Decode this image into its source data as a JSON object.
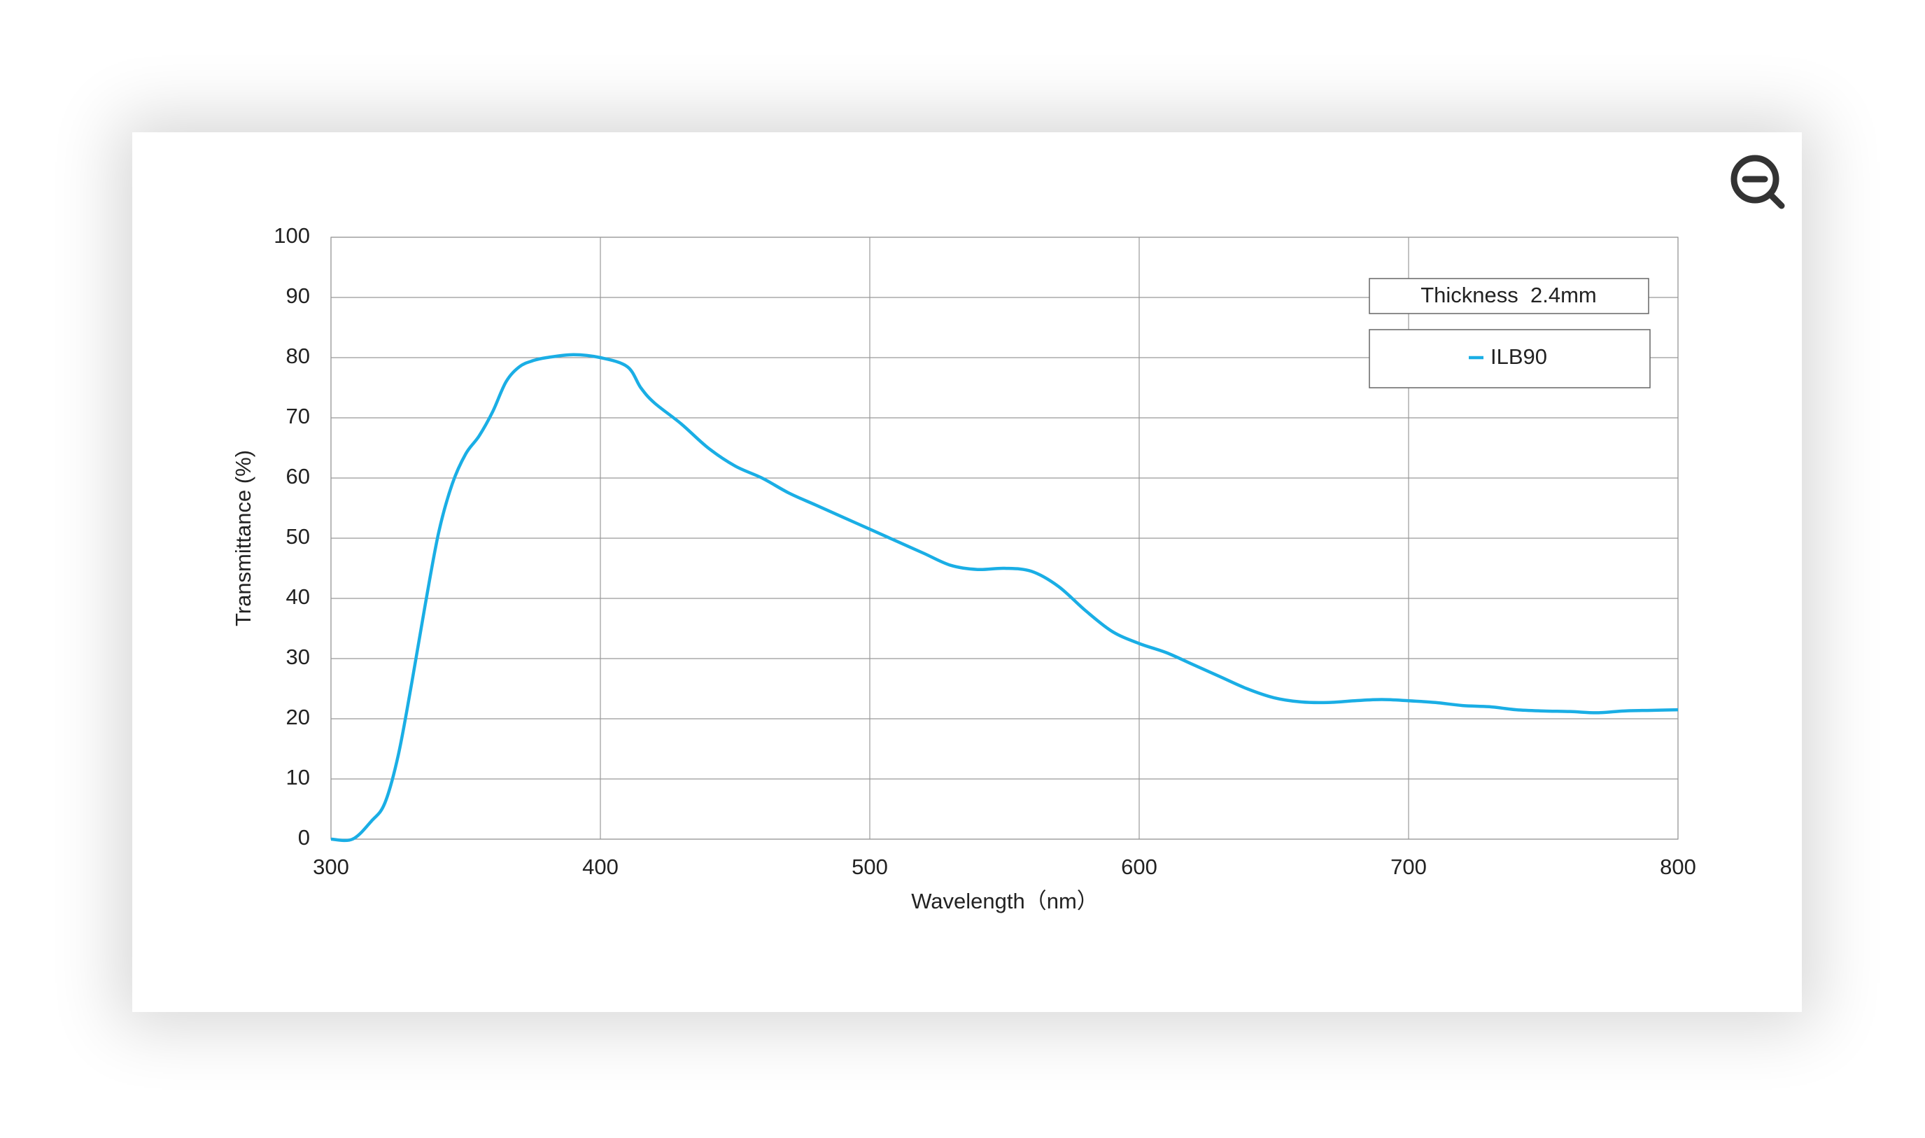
{
  "chart_data": {
    "type": "line",
    "xlabel": "Wavelength（nm）",
    "ylabel": "Transmittance (%)",
    "legend_title": "Thickness  2.4mm",
    "x": [
      300,
      308,
      315,
      320,
      325,
      330,
      335,
      340,
      345,
      350,
      355,
      360,
      365,
      370,
      375,
      380,
      390,
      400,
      410,
      415,
      420,
      430,
      440,
      450,
      460,
      470,
      480,
      490,
      500,
      510,
      520,
      530,
      540,
      550,
      560,
      570,
      580,
      590,
      600,
      610,
      620,
      630,
      640,
      650,
      660,
      670,
      680,
      690,
      700,
      710,
      720,
      730,
      740,
      750,
      760,
      770,
      780,
      790,
      800
    ],
    "series": [
      {
        "name": "ILB90",
        "color": "#1aaee5",
        "values": [
          0,
          0,
          3,
          6,
          14,
          26,
          39,
          51,
          59,
          64,
          67,
          71,
          76,
          78.5,
          79.5,
          80,
          80.5,
          80,
          78.5,
          75,
          72.5,
          69,
          65,
          62,
          60,
          57.5,
          55.5,
          53.5,
          51.5,
          49.5,
          47.5,
          45.5,
          44.8,
          45,
          44.5,
          42,
          38,
          34.5,
          32.5,
          31,
          29,
          27,
          25,
          23.5,
          22.8,
          22.7,
          23,
          23.2,
          23,
          22.7,
          22.2,
          22,
          21.5,
          21.3,
          21.2,
          21,
          21.3,
          21.4,
          21.5
        ]
      }
    ],
    "xlim": [
      300,
      800
    ],
    "xticks": [
      300,
      400,
      500,
      600,
      700,
      800
    ],
    "ylim": [
      0,
      100
    ],
    "yticks": [
      0,
      10,
      20,
      30,
      40,
      50,
      60,
      70,
      80,
      90,
      100
    ],
    "grid": true
  }
}
